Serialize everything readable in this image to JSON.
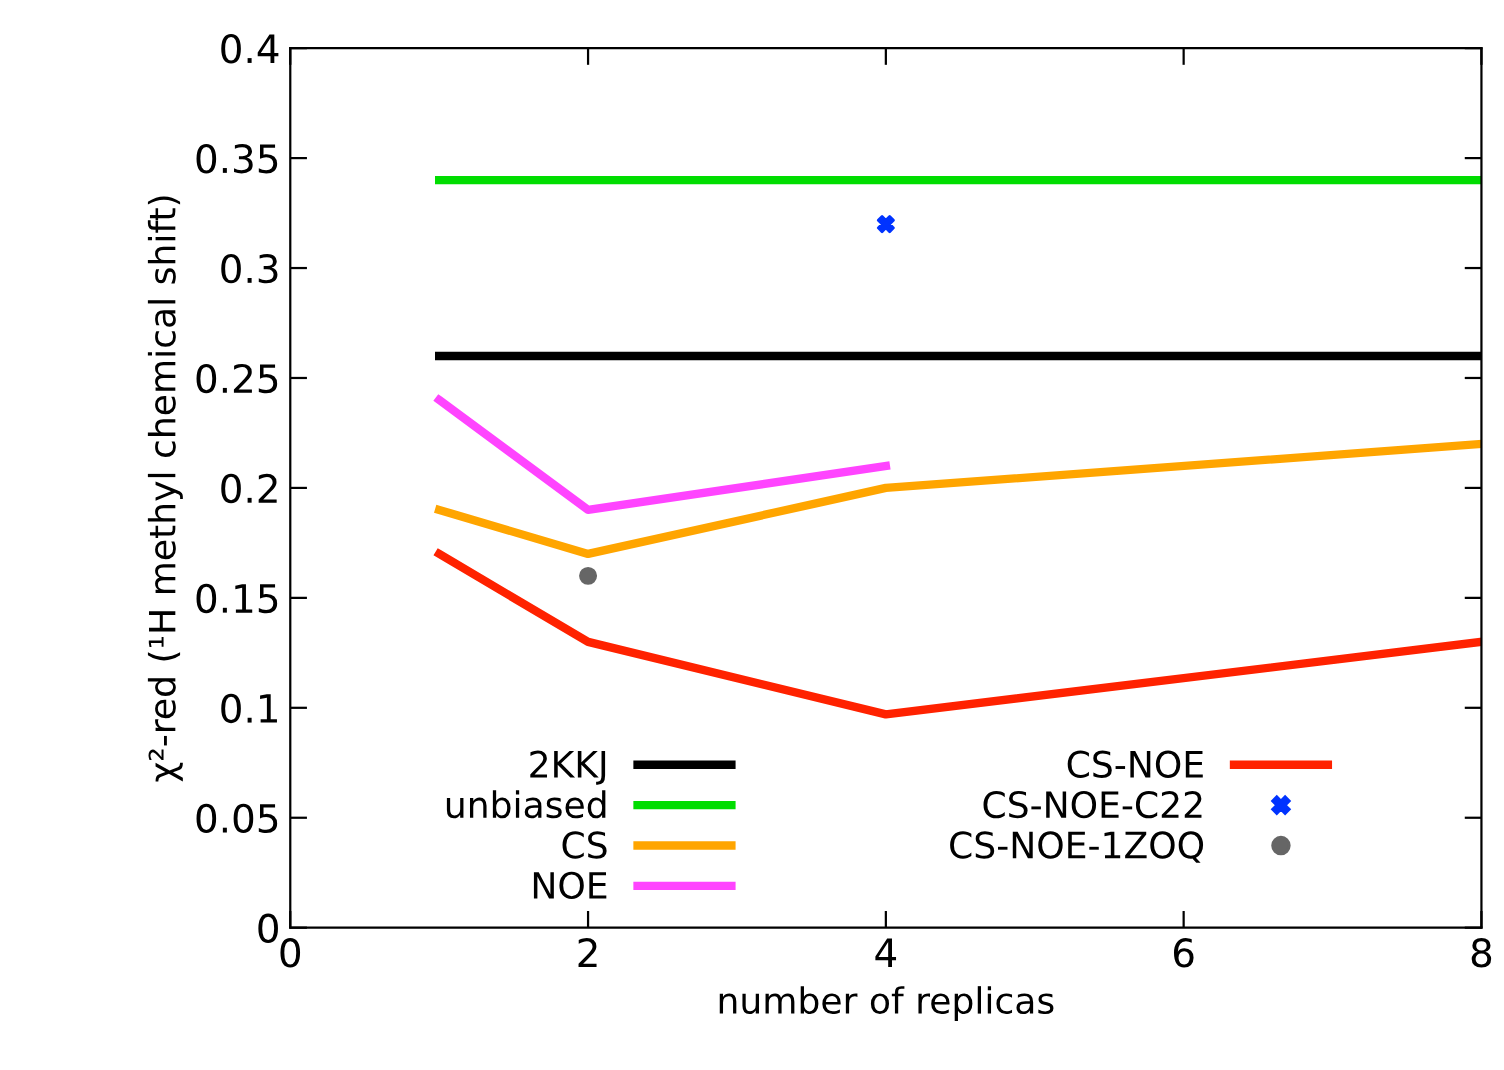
{
  "chart_data": {
    "type": "line",
    "xlabel": "number of replicas",
    "ylabel": "χ²-red (¹H methyl chemical shift)",
    "xlim": [
      0,
      8
    ],
    "xticks": [
      0,
      2,
      4,
      6,
      8
    ],
    "ylim": [
      0,
      0.4
    ],
    "yticks": [
      0,
      0.05,
      0.1,
      0.15,
      0.2,
      0.25,
      0.3,
      0.35,
      0.4
    ],
    "grid": false,
    "legend": "bottom",
    "series": [
      {
        "name": "2KKJ",
        "color": "#000000",
        "x": [
          1,
          8
        ],
        "values": [
          0.26,
          0.26
        ]
      },
      {
        "name": "unbiased",
        "color": "#00dd00",
        "x": [
          1,
          8
        ],
        "values": [
          0.34,
          0.34
        ]
      },
      {
        "name": "CS",
        "color": "#ffa500",
        "x": [
          1,
          2,
          4,
          8
        ],
        "values": [
          0.19,
          0.17,
          0.2,
          0.22
        ]
      },
      {
        "name": "NOE",
        "color": "#ff44ff",
        "x": [
          1,
          2,
          4
        ],
        "values": [
          0.24,
          0.19,
          0.21
        ]
      },
      {
        "name": "CS-NOE",
        "color": "#ff2200",
        "x": [
          1,
          2,
          4,
          8
        ],
        "values": [
          0.17,
          0.13,
          0.097,
          0.13
        ]
      },
      {
        "name": "CS-NOE-C22",
        "type": "scatter",
        "marker": "cross",
        "color": "#0033ff",
        "x": [
          4
        ],
        "values": [
          0.32
        ]
      },
      {
        "name": "CS-NOE-1ZOQ",
        "type": "scatter",
        "marker": "circle",
        "color": "#666666",
        "x": [
          2
        ],
        "values": [
          0.16
        ]
      }
    ]
  }
}
